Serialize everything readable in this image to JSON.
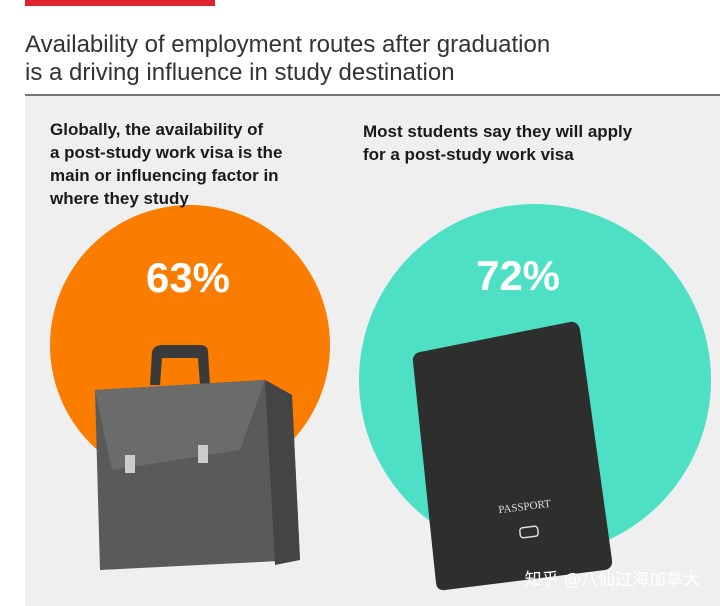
{
  "header": {
    "title": [
      "Availability of employment routes after graduation",
      "is a driving influence in study destination"
    ]
  },
  "panels": [
    {
      "text": [
        "Globally, the availability of",
        "a post-study work visa is the",
        "main or influencing factor in",
        "where they study"
      ],
      "stat": "63%"
    },
    {
      "text": [
        "Most students say they will apply",
        "for a post-study work visa"
      ],
      "stat": "72%"
    }
  ],
  "watermark": "知乎 @八仙过海加拿大"
}
